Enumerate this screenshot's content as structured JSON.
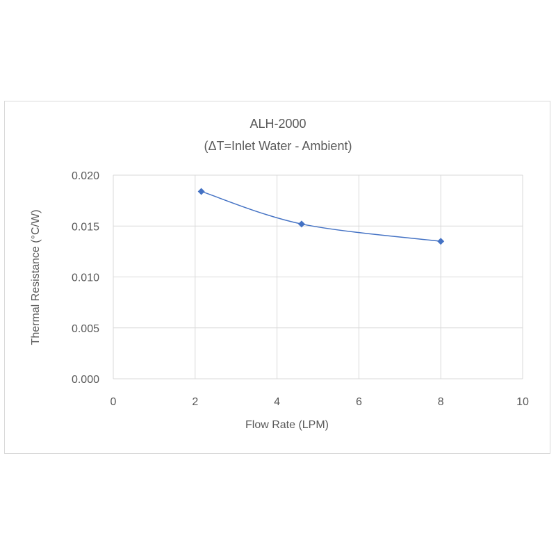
{
  "chart_data": {
    "type": "scatter",
    "title": "ALH-2000",
    "subtitle": "(ΔT=Inlet Water - Ambient)",
    "xlabel": "Flow Rate (LPM)",
    "ylabel": "Thermal Resistance (°C/W)",
    "xlim": [
      0,
      10
    ],
    "ylim": [
      0,
      0.02
    ],
    "xticks": [
      "0",
      "2",
      "4",
      "6",
      "8",
      "10"
    ],
    "yticks": [
      "0.000",
      "0.005",
      "0.010",
      "0.015",
      "0.020"
    ],
    "grid": true,
    "series": [
      {
        "name": "ALH-2000",
        "color": "#4472c4",
        "marker": "diamond",
        "smooth": true,
        "x": [
          2.15,
          4.6,
          8.0
        ],
        "y": [
          0.0184,
          0.0152,
          0.0135
        ]
      }
    ]
  }
}
